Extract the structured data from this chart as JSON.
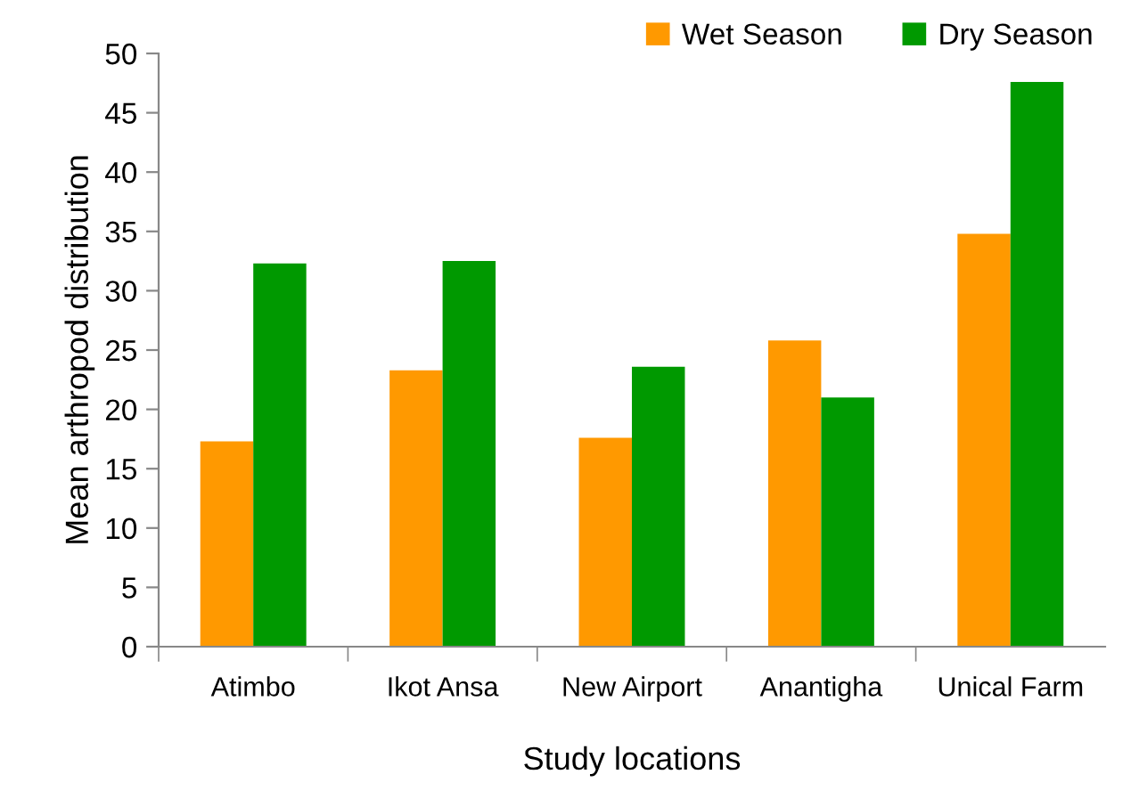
{
  "chart_data": {
    "type": "bar",
    "xlabel": "Study locations",
    "ylabel": "Mean arthropod distribution",
    "categories": [
      "Atimbo",
      "Ikot Ansa",
      "New Airport",
      "Anantigha",
      "Unical Farm"
    ],
    "series": [
      {
        "name": "Wet Season",
        "color": "#ff9900",
        "values": [
          17.3,
          23.3,
          17.6,
          25.8,
          34.8
        ]
      },
      {
        "name": "Dry Season",
        "color": "#009900",
        "values": [
          32.3,
          32.5,
          23.6,
          21.0,
          47.6
        ]
      }
    ],
    "ylim": [
      0,
      50
    ],
    "yticks": [
      0,
      5,
      10,
      15,
      20,
      25,
      30,
      35,
      40,
      45,
      50
    ],
    "grid": false,
    "legend": "top right"
  }
}
